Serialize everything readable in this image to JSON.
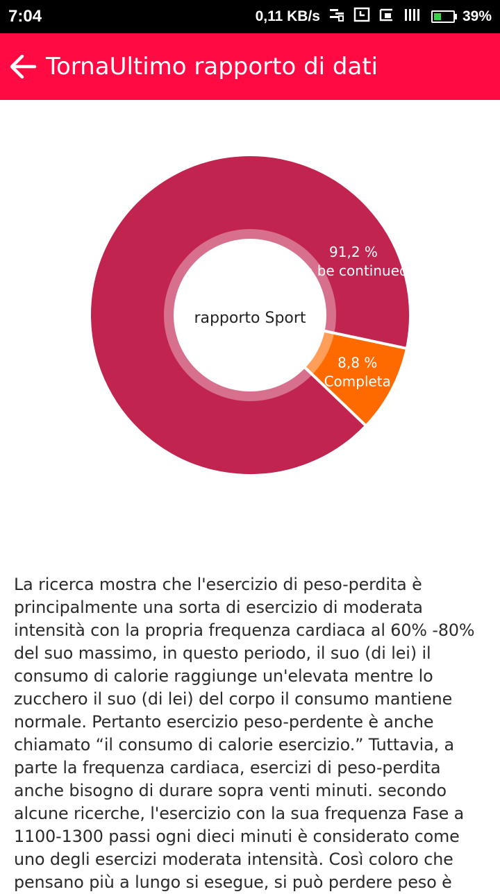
{
  "status_bar": {
    "time": "7:04",
    "network_speed": "0,11 KB/s",
    "battery_percent": "39%",
    "battery_level": 0.39
  },
  "header": {
    "back_label": "Torna",
    "title": "Ultimo rapporto di dati",
    "background_color": "#ff0a42"
  },
  "chart_data": {
    "type": "pie",
    "center_label": "rapporto Sport",
    "slices": [
      {
        "label": "Completa",
        "value": 8.8,
        "display": "8,8 %",
        "color": "#ff6a00"
      },
      {
        "label": "to be continued",
        "value": 91.2,
        "display": "91,2 %",
        "color": "#c0244f"
      }
    ]
  },
  "article": {
    "text": "La ricerca mostra che l'esercizio di peso-perdita è principalmente una sorta di esercizio di moderata intensità con la propria frequenza cardiaca al 60% -80% del suo massimo, in questo periodo, il suo (di lei) il consumo di calorie raggiunge un'elevata mentre lo zucchero il suo (di lei) del corpo il consumo mantiene normale. Pertanto esercizio peso-perdente è anche chiamato “il consumo di calorie esercizio.” Tuttavia, a parte la frequenza cardiaca, esercizi di peso-perdita anche bisogno di durare sopra venti minuti. secondo alcune ricerche, l'esercizio con la sua frequenza Fase a 1100-1300 passi ogni dieci minuti è considerato come uno degli esercizi moderata intensità. Così coloro che pensano più a lungo si esegue, si può perdere peso è"
  }
}
